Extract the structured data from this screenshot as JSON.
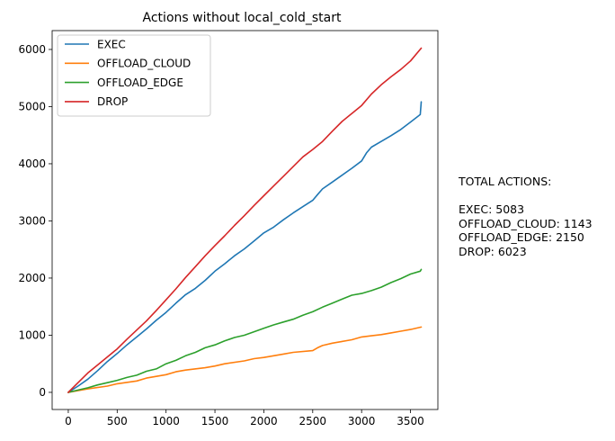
{
  "chart_data": {
    "type": "line",
    "title": "Actions without local_cold_start",
    "xlabel": "",
    "ylabel": "",
    "xlim": [
      -165,
      3780
    ],
    "ylim": [
      -300,
      6330
    ],
    "xticks": [
      0,
      500,
      1000,
      1500,
      2000,
      2500,
      3000,
      3500
    ],
    "yticks": [
      0,
      1000,
      2000,
      3000,
      4000,
      5000,
      6000
    ],
    "grid": false,
    "legend_position": "upper-left",
    "series": [
      {
        "name": "EXEC",
        "color": "#1f77b4",
        "points": [
          [
            0,
            0
          ],
          [
            100,
            110
          ],
          [
            200,
            230
          ],
          [
            300,
            380
          ],
          [
            400,
            540
          ],
          [
            500,
            680
          ],
          [
            600,
            830
          ],
          [
            700,
            970
          ],
          [
            800,
            1110
          ],
          [
            900,
            1260
          ],
          [
            1000,
            1400
          ],
          [
            1100,
            1560
          ],
          [
            1200,
            1710
          ],
          [
            1300,
            1820
          ],
          [
            1400,
            1960
          ],
          [
            1500,
            2120
          ],
          [
            1600,
            2250
          ],
          [
            1700,
            2390
          ],
          [
            1800,
            2510
          ],
          [
            1900,
            2650
          ],
          [
            2000,
            2790
          ],
          [
            2100,
            2890
          ],
          [
            2200,
            3020
          ],
          [
            2300,
            3140
          ],
          [
            2400,
            3250
          ],
          [
            2500,
            3360
          ],
          [
            2550,
            3460
          ],
          [
            2600,
            3560
          ],
          [
            2700,
            3680
          ],
          [
            2800,
            3800
          ],
          [
            2900,
            3920
          ],
          [
            3000,
            4050
          ],
          [
            3050,
            4190
          ],
          [
            3100,
            4290
          ],
          [
            3200,
            4390
          ],
          [
            3300,
            4490
          ],
          [
            3400,
            4600
          ],
          [
            3500,
            4730
          ],
          [
            3600,
            4860
          ],
          [
            3610,
            5083
          ]
        ]
      },
      {
        "name": "OFFLOAD_CLOUD",
        "color": "#ff7f0e",
        "points": [
          [
            0,
            0
          ],
          [
            200,
            60
          ],
          [
            400,
            110
          ],
          [
            500,
            150
          ],
          [
            700,
            200
          ],
          [
            800,
            250
          ],
          [
            1000,
            310
          ],
          [
            1100,
            360
          ],
          [
            1200,
            390
          ],
          [
            1400,
            430
          ],
          [
            1500,
            460
          ],
          [
            1600,
            500
          ],
          [
            1800,
            550
          ],
          [
            1900,
            590
          ],
          [
            2000,
            610
          ],
          [
            2100,
            640
          ],
          [
            2200,
            670
          ],
          [
            2300,
            700
          ],
          [
            2500,
            730
          ],
          [
            2550,
            780
          ],
          [
            2600,
            820
          ],
          [
            2700,
            860
          ],
          [
            2800,
            890
          ],
          [
            2900,
            920
          ],
          [
            3000,
            970
          ],
          [
            3100,
            990
          ],
          [
            3200,
            1010
          ],
          [
            3300,
            1040
          ],
          [
            3400,
            1070
          ],
          [
            3500,
            1100
          ],
          [
            3610,
            1143
          ]
        ]
      },
      {
        "name": "OFFLOAD_EDGE",
        "color": "#2ca02c",
        "points": [
          [
            0,
            0
          ],
          [
            100,
            40
          ],
          [
            200,
            80
          ],
          [
            300,
            130
          ],
          [
            400,
            170
          ],
          [
            500,
            210
          ],
          [
            600,
            260
          ],
          [
            700,
            300
          ],
          [
            800,
            370
          ],
          [
            900,
            410
          ],
          [
            1000,
            500
          ],
          [
            1100,
            560
          ],
          [
            1200,
            640
          ],
          [
            1300,
            700
          ],
          [
            1400,
            780
          ],
          [
            1500,
            830
          ],
          [
            1600,
            900
          ],
          [
            1700,
            960
          ],
          [
            1800,
            1000
          ],
          [
            1900,
            1060
          ],
          [
            2000,
            1120
          ],
          [
            2100,
            1180
          ],
          [
            2200,
            1230
          ],
          [
            2300,
            1280
          ],
          [
            2400,
            1350
          ],
          [
            2500,
            1410
          ],
          [
            2600,
            1490
          ],
          [
            2700,
            1560
          ],
          [
            2800,
            1630
          ],
          [
            2900,
            1700
          ],
          [
            3000,
            1730
          ],
          [
            3100,
            1780
          ],
          [
            3200,
            1840
          ],
          [
            3300,
            1920
          ],
          [
            3400,
            1990
          ],
          [
            3500,
            2070
          ],
          [
            3600,
            2120
          ],
          [
            3610,
            2150
          ]
        ]
      },
      {
        "name": "DROP",
        "color": "#d62728",
        "points": [
          [
            0,
            0
          ],
          [
            100,
            170
          ],
          [
            200,
            340
          ],
          [
            300,
            480
          ],
          [
            400,
            620
          ],
          [
            500,
            760
          ],
          [
            600,
            930
          ],
          [
            700,
            1090
          ],
          [
            800,
            1250
          ],
          [
            900,
            1430
          ],
          [
            1000,
            1620
          ],
          [
            1100,
            1810
          ],
          [
            1200,
            2010
          ],
          [
            1300,
            2200
          ],
          [
            1400,
            2390
          ],
          [
            1500,
            2570
          ],
          [
            1600,
            2740
          ],
          [
            1700,
            2920
          ],
          [
            1800,
            3090
          ],
          [
            1900,
            3270
          ],
          [
            2000,
            3440
          ],
          [
            2100,
            3610
          ],
          [
            2200,
            3780
          ],
          [
            2300,
            3950
          ],
          [
            2400,
            4120
          ],
          [
            2500,
            4250
          ],
          [
            2600,
            4390
          ],
          [
            2700,
            4570
          ],
          [
            2800,
            4740
          ],
          [
            2900,
            4880
          ],
          [
            3000,
            5020
          ],
          [
            3100,
            5220
          ],
          [
            3200,
            5380
          ],
          [
            3300,
            5520
          ],
          [
            3400,
            5650
          ],
          [
            3500,
            5800
          ],
          [
            3610,
            6023
          ]
        ]
      }
    ]
  },
  "totals_panel": {
    "heading": "TOTAL ACTIONS:",
    "lines": [
      "EXEC: 5083",
      "OFFLOAD_CLOUD: 1143",
      "OFFLOAD_EDGE: 2150",
      "DROP: 6023"
    ]
  }
}
